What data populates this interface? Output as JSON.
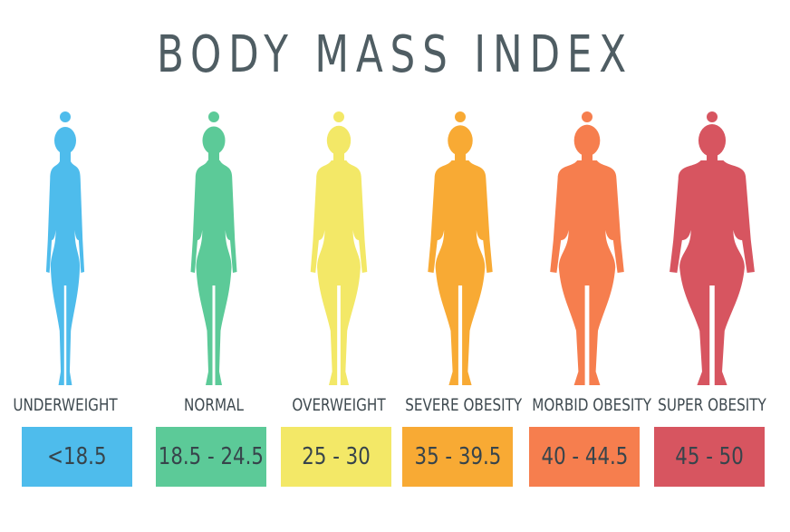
{
  "title": "BODY MASS INDEX",
  "categories": [
    {
      "label": "UNDERWEIGHT",
      "range": "<18.5",
      "color": "#4ebcec",
      "body_width": 0.62
    },
    {
      "label": "NORMAL",
      "range": "18.5 - 24.5",
      "color": "#5cca98",
      "body_width": 0.75
    },
    {
      "label": "OVERWEIGHT",
      "range": "25 - 30",
      "color": "#f3e867",
      "body_width": 0.92
    },
    {
      "label": "SEVERE OBESITY",
      "range": "35 - 39.5",
      "color": "#f8aa34",
      "body_width": 1.05
    },
    {
      "label": "MORBID OBESITY",
      "range": "40 - 44.5",
      "color": "#f67e4e",
      "body_width": 1.2
    },
    {
      "label": "SUPER OBESITY",
      "range": "45 - 50",
      "color": "#d75560",
      "body_width": 1.38
    }
  ]
}
